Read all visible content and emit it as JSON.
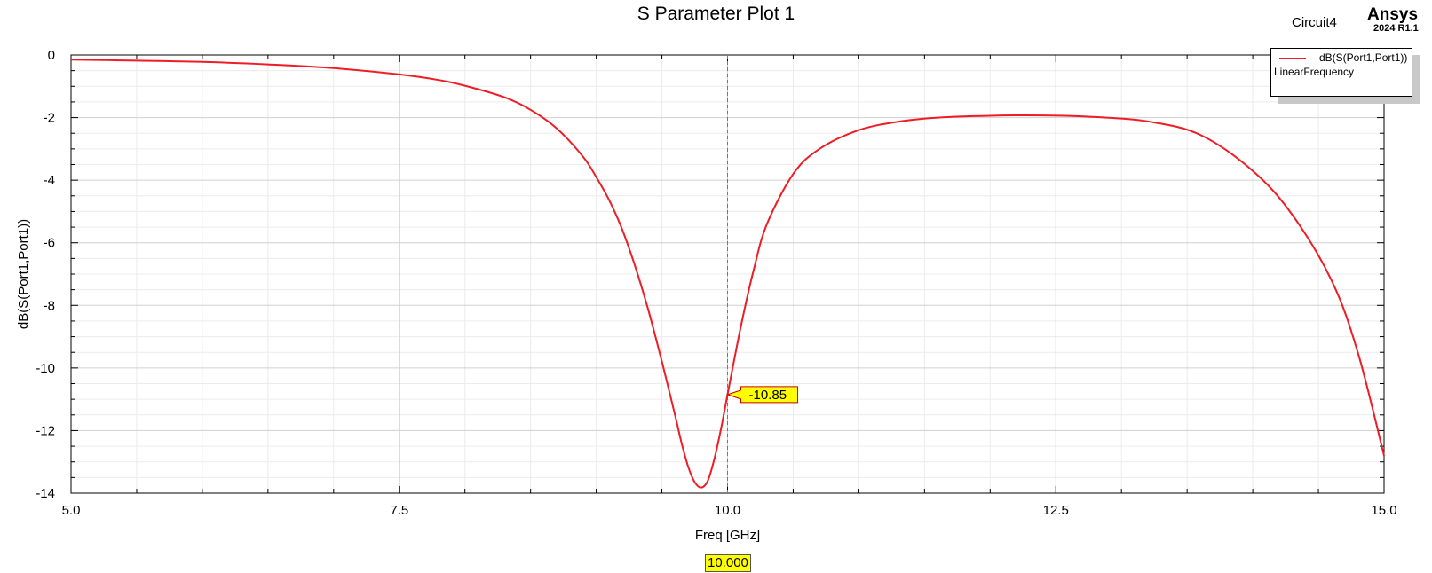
{
  "header": {
    "circuit": "Circuit4",
    "brand": "Ansys",
    "version": "2024 R1.1"
  },
  "legend": {
    "trace_name": "dB(S(Port1,Port1))",
    "sweep": "LinearFrequency"
  },
  "marker": {
    "x_label": "10.000",
    "y_label": "-10.85",
    "x_value": 10.0,
    "y_value": -10.85
  },
  "colors": {
    "trace": "#ee1c25",
    "marker_fill": "#ffff00",
    "grid": "#d0d0d0",
    "grid_minor": "#ececec"
  },
  "chart_data": {
    "type": "line",
    "title": "S Parameter Plot 1",
    "xlabel": "Freq [GHz]",
    "ylabel": "dB(S(Port1,Port1))",
    "xlim": [
      5.0,
      15.0
    ],
    "ylim": [
      -14,
      0
    ],
    "xticks": [
      5.0,
      7.5,
      10.0,
      12.5,
      15.0
    ],
    "xtick_labels": [
      "5.0",
      "7.5",
      "10.0",
      "12.5",
      "15.0"
    ],
    "yticks": [
      0,
      -2,
      -4,
      -6,
      -8,
      -10,
      -12,
      -14
    ],
    "ytick_labels": [
      "0",
      "-2",
      "-4",
      "-6",
      "-8",
      "-10",
      "-12",
      "-14"
    ],
    "grid": true,
    "legend_position": "top-right",
    "series": [
      {
        "name": "dB(S(Port1,Port1))",
        "x": [
          5.0,
          5.5,
          6.0,
          6.5,
          7.0,
          7.5,
          7.8,
          8.0,
          8.3,
          8.5,
          8.7,
          8.9,
          9.0,
          9.1,
          9.2,
          9.3,
          9.4,
          9.5,
          9.6,
          9.65,
          9.7,
          9.75,
          9.8,
          9.85,
          9.9,
          9.95,
          10.0,
          10.1,
          10.2,
          10.3,
          10.5,
          10.7,
          11.0,
          11.3,
          11.6,
          12.0,
          12.4,
          12.8,
          13.2,
          13.6,
          14.0,
          14.3,
          14.6,
          14.8,
          15.0
        ],
        "y": [
          -0.15,
          -0.18,
          -0.22,
          -0.3,
          -0.42,
          -0.62,
          -0.8,
          -0.98,
          -1.35,
          -1.75,
          -2.35,
          -3.25,
          -3.9,
          -4.65,
          -5.6,
          -6.8,
          -8.2,
          -9.8,
          -11.5,
          -12.4,
          -13.15,
          -13.65,
          -13.82,
          -13.6,
          -12.9,
          -11.95,
          -10.85,
          -8.7,
          -6.85,
          -5.4,
          -3.8,
          -3.0,
          -2.4,
          -2.13,
          -2.0,
          -1.94,
          -1.93,
          -1.98,
          -2.12,
          -2.55,
          -3.7,
          -5.1,
          -7.2,
          -9.5,
          -12.8
        ]
      }
    ]
  }
}
